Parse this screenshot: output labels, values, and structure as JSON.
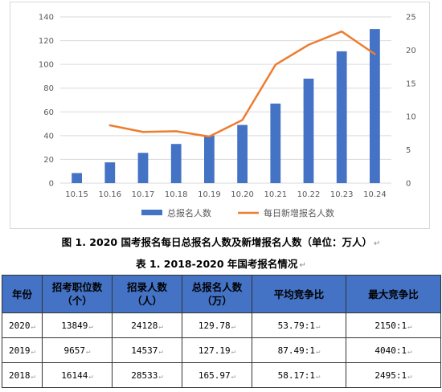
{
  "chart_data": {
    "type": "bar+line",
    "categories": [
      "10.15",
      "10.16",
      "10.17",
      "10.18",
      "10.19",
      "10.20",
      "10.21",
      "10.22",
      "10.23",
      "10.24"
    ],
    "series": [
      {
        "name": "总报名人数",
        "type": "bar",
        "axis": "left",
        "color": "#4472c4",
        "values": [
          8.5,
          17.5,
          25.5,
          33,
          40,
          49,
          67,
          88,
          111,
          129.78
        ]
      },
      {
        "name": "每日新增报名人数",
        "type": "line",
        "axis": "right",
        "color": "#ed7d31",
        "values": [
          null,
          8.7,
          7.7,
          7.8,
          7.0,
          9.5,
          17.8,
          20.8,
          22.8,
          19.4
        ]
      }
    ],
    "y_left": {
      "min": 0,
      "max": 140,
      "ticks": [
        0,
        20,
        40,
        60,
        80,
        100,
        120,
        140
      ]
    },
    "y_right": {
      "min": 0,
      "max": 25,
      "ticks": [
        0,
        5,
        10,
        15,
        20,
        25
      ]
    },
    "legend_position": "bottom",
    "grid": true
  },
  "figure_caption": "图 1. 2020 国考报名每日总报名人数及新增报名人数（单位：万人）",
  "table_caption": "表 1. 2018-2020 年国考报名情况",
  "paragraph_mark": "↵",
  "table": {
    "headers": [
      [
        "年份"
      ],
      [
        "招考职位数",
        "（个）"
      ],
      [
        "招录人数",
        "（人）"
      ],
      [
        "总报名人数",
        "（万）"
      ],
      [
        "平均竞争比"
      ],
      [
        "最大竞争比"
      ]
    ],
    "rows": [
      [
        "2020",
        "13849",
        "24128",
        "129.78",
        "53.79:1",
        "2150:1"
      ],
      [
        "2019",
        "9657",
        "14537",
        "127.19",
        "87.49:1",
        "4040:1"
      ],
      [
        "2018",
        "16144",
        "28533",
        "165.97",
        "58.17:1",
        "2495:1"
      ]
    ]
  }
}
